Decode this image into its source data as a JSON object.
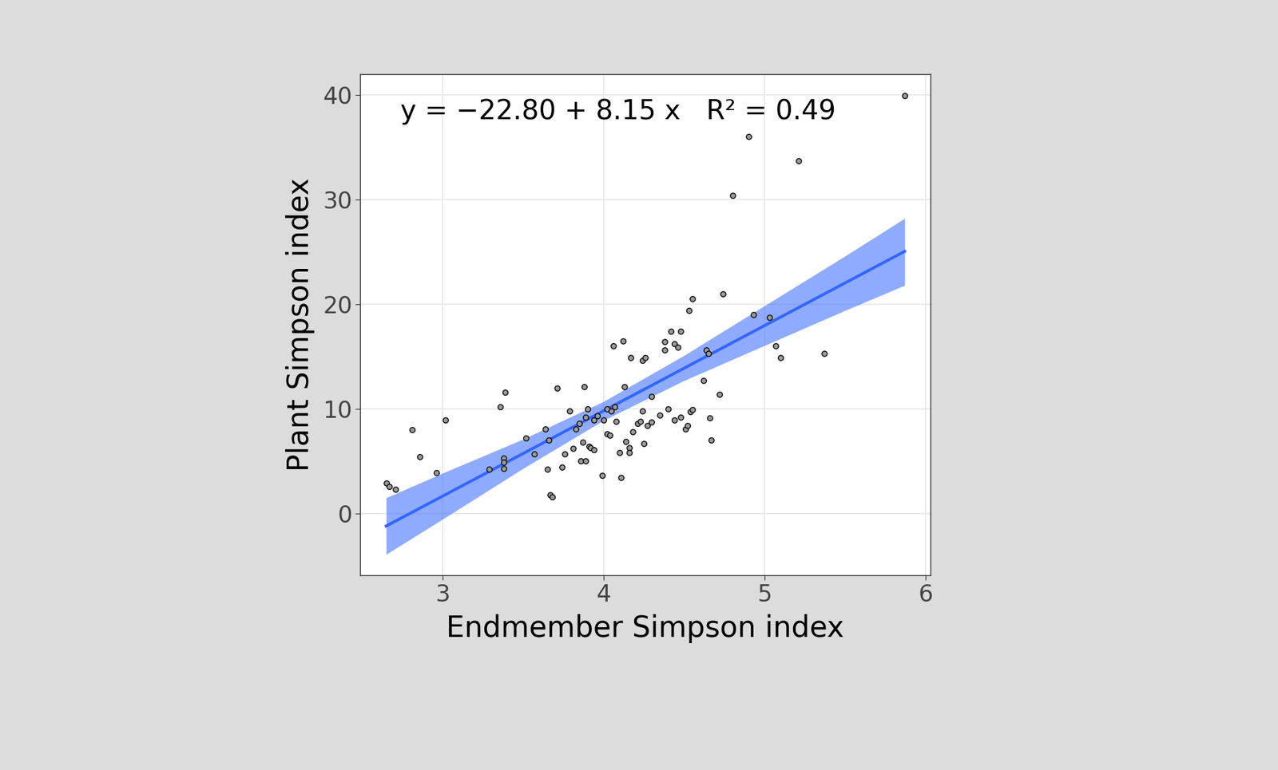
{
  "chart_data": {
    "type": "scatter",
    "x_label": "Endmember Simpson index",
    "y_label": "Plant Simpson index",
    "annotation": "y = −22.80 + 8.15 x   R² = 0.49",
    "xlim": [
      2.49,
      6.03
    ],
    "ylim": [
      -5.9,
      42.0
    ],
    "xticks": [
      3,
      4,
      5,
      6
    ],
    "yticks": [
      0,
      10,
      20,
      30,
      40
    ],
    "grid": true,
    "marker": "o",
    "color": "#999999",
    "x": [
      2.65,
      2.67,
      2.71,
      2.81,
      2.86,
      2.96,
      3.02,
      3.29,
      3.36,
      3.39,
      3.38,
      3.38,
      3.38,
      3.52,
      3.57,
      3.64,
      3.65,
      3.66,
      3.67,
      3.68,
      3.71,
      3.74,
      3.76,
      3.79,
      3.81,
      3.83,
      3.85,
      3.86,
      3.88,
      3.87,
      3.89,
      3.89,
      3.9,
      3.91,
      3.92,
      3.94,
      3.94,
      3.96,
      3.99,
      4.0,
      4.02,
      4.02,
      4.04,
      4.05,
      4.06,
      4.07,
      4.08,
      4.1,
      4.12,
      4.11,
      4.13,
      4.14,
      4.16,
      4.16,
      4.17,
      4.18,
      4.21,
      4.23,
      4.24,
      4.24,
      4.25,
      4.26,
      4.27,
      4.3,
      4.3,
      4.35,
      4.38,
      4.38,
      4.4,
      4.42,
      4.44,
      4.44,
      4.46,
      4.48,
      4.48,
      4.51,
      4.52,
      4.53,
      4.54,
      4.55,
      4.55,
      4.62,
      4.64,
      4.65,
      4.66,
      4.67,
      4.72,
      4.74,
      4.8,
      4.9,
      4.93,
      5.03,
      5.07,
      5.1,
      5.21,
      5.37,
      5.87
    ],
    "values": [
      2.9,
      2.6,
      2.3,
      8.0,
      5.4,
      3.9,
      8.9,
      4.2,
      10.2,
      11.6,
      5.3,
      4.9,
      4.3,
      7.2,
      5.7,
      8.1,
      4.2,
      7.0,
      1.8,
      1.6,
      12.0,
      4.4,
      5.7,
      9.8,
      6.2,
      8.1,
      8.6,
      5.0,
      12.1,
      6.8,
      9.2,
      5.0,
      10.0,
      6.4,
      6.3,
      6.1,
      8.9,
      9.3,
      3.6,
      8.9,
      7.6,
      10.0,
      7.5,
      9.8,
      16.0,
      10.2,
      8.8,
      5.8,
      16.5,
      3.4,
      12.1,
      6.9,
      6.3,
      5.8,
      14.9,
      7.8,
      8.6,
      8.8,
      14.6,
      9.8,
      6.7,
      14.9,
      8.4,
      8.7,
      11.2,
      9.4,
      15.6,
      16.4,
      10.0,
      17.4,
      8.9,
      16.2,
      15.9,
      9.2,
      17.4,
      8.1,
      8.4,
      19.4,
      9.7,
      20.5,
      9.9,
      12.7,
      15.6,
      15.3,
      9.1,
      7.0,
      11.4,
      21.0,
      30.4,
      36.0,
      19.0,
      18.7,
      16.0,
      14.9,
      33.7,
      15.3,
      39.9
    ],
    "fit": {
      "intercept": -22.8,
      "slope": 8.15,
      "color": "#3366ff"
    },
    "band": {
      "x": [
        2.65,
        3.0,
        3.5,
        4.0,
        4.5,
        5.0,
        5.5,
        5.87
      ],
      "lower": [
        -3.9,
        -0.55,
        4.3,
        8.9,
        12.7,
        16.05,
        19.4,
        21.8
      ],
      "upper": [
        1.5,
        3.85,
        7.1,
        10.7,
        15.1,
        19.85,
        24.6,
        28.2
      ]
    }
  }
}
